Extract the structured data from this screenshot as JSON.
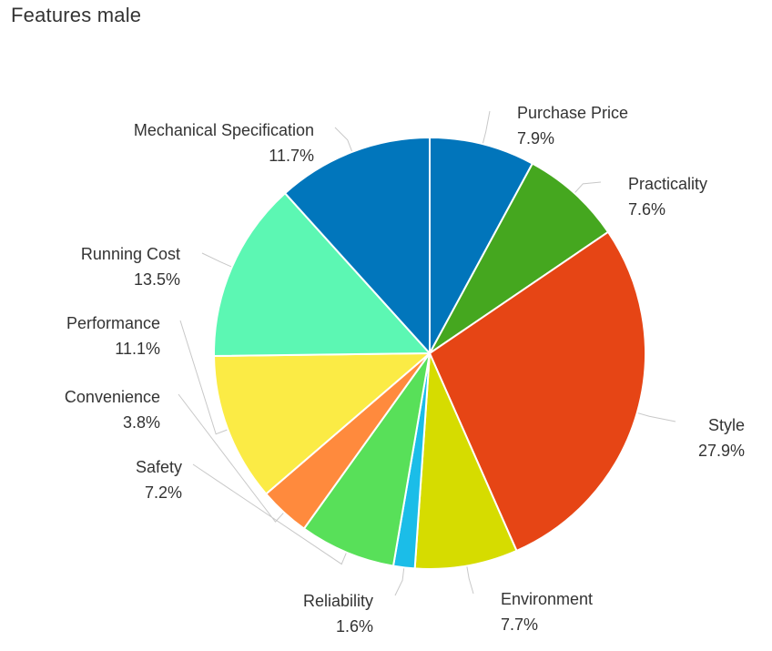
{
  "chart_data": {
    "type": "pie",
    "title": "Features male",
    "slices": [
      {
        "name": "Purchase Price",
        "value": 7.9,
        "label": "7.9%",
        "color": "#0175BB"
      },
      {
        "name": "Practicality",
        "value": 7.6,
        "label": "7.6%",
        "color": "#45A71F"
      },
      {
        "name": "Style",
        "value": 27.9,
        "label": "27.9%",
        "color": "#E64515"
      },
      {
        "name": "Environment",
        "value": 7.7,
        "label": "7.7%",
        "color": "#D6DC00"
      },
      {
        "name": "Reliability",
        "value": 1.6,
        "label": "1.6%",
        "color": "#1BBDE8"
      },
      {
        "name": "Safety",
        "value": 7.2,
        "label": "7.2%",
        "color": "#58E059"
      },
      {
        "name": "Convenience",
        "value": 3.8,
        "label": "3.8%",
        "color": "#FF8A3D"
      },
      {
        "name": "Performance",
        "value": 11.1,
        "label": "11.1%",
        "color": "#FBEB45"
      },
      {
        "name": "Running Cost",
        "value": 13.5,
        "label": "13.5%",
        "color": "#5CF7B3"
      },
      {
        "name": "Mechanical Specification",
        "value": 11.7,
        "label": "11.7%",
        "color": "#0176BC"
      }
    ]
  }
}
